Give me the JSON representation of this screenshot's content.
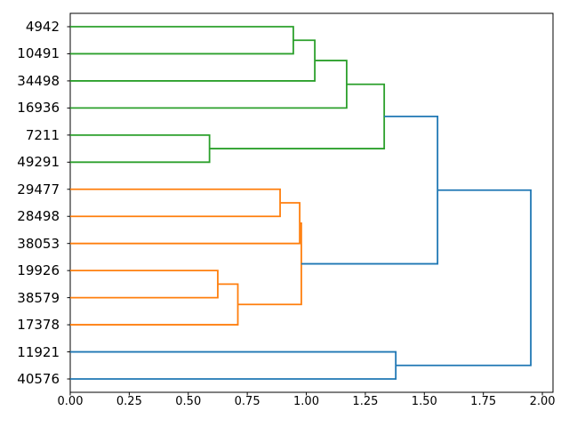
{
  "figure": {
    "background": "#ffffff",
    "title": "",
    "xlabel": "",
    "ylabel": ""
  },
  "chart_data": {
    "type": "dendrogram",
    "orientation": "labels-left-tree-grows-right",
    "title": "",
    "xlabel": "",
    "ylabel": "",
    "grid": false,
    "leaves": [
      "4942",
      "10491",
      "34498",
      "16936",
      "7211",
      "49291",
      "29477",
      "28498",
      "38053",
      "19926",
      "38579",
      "17378",
      "11921",
      "40576"
    ],
    "links": [
      {
        "children": [
          "leaf:0",
          "leaf:1"
        ],
        "distance": 0.945,
        "color_key": "green"
      },
      {
        "children": [
          "node:0",
          "leaf:2"
        ],
        "distance": 1.036,
        "color_key": "green"
      },
      {
        "children": [
          "node:1",
          "leaf:3"
        ],
        "distance": 1.171,
        "color_key": "green"
      },
      {
        "children": [
          "leaf:4",
          "leaf:5"
        ],
        "distance": 0.59,
        "color_key": "green"
      },
      {
        "children": [
          "node:2",
          "node:3"
        ],
        "distance": 1.33,
        "color_key": "green"
      },
      {
        "children": [
          "leaf:6",
          "leaf:7"
        ],
        "distance": 0.889,
        "color_key": "orange"
      },
      {
        "children": [
          "node:5",
          "leaf:8"
        ],
        "distance": 0.972,
        "color_key": "orange"
      },
      {
        "children": [
          "leaf:9",
          "leaf:10"
        ],
        "distance": 0.625,
        "color_key": "orange"
      },
      {
        "children": [
          "node:7",
          "leaf:11"
        ],
        "distance": 0.71,
        "color_key": "orange"
      },
      {
        "children": [
          "node:6",
          "node:8"
        ],
        "distance": 0.979,
        "color_key": "orange"
      },
      {
        "children": [
          "node:4",
          "node:9"
        ],
        "distance": 1.556,
        "color_key": "blue"
      },
      {
        "children": [
          "leaf:12",
          "leaf:13"
        ],
        "distance": 1.379,
        "color_key": "blue"
      },
      {
        "children": [
          "node:10",
          "node:11"
        ],
        "distance": 1.951,
        "color_key": "blue"
      }
    ],
    "colors": {
      "green": "#2ca02c",
      "orange": "#ff7f0e",
      "blue": "#1f77b4",
      "spine": "#000000",
      "text": "#000000"
    },
    "xticks": [
      "0.00",
      "0.25",
      "0.50",
      "0.75",
      "1.00",
      "1.25",
      "1.50",
      "1.75",
      "2.00"
    ],
    "xtick_values": [
      0,
      0.25,
      0.5,
      0.75,
      1,
      1.25,
      1.5,
      1.75,
      2
    ],
    "xlim": [
      0,
      2.045
    ]
  }
}
